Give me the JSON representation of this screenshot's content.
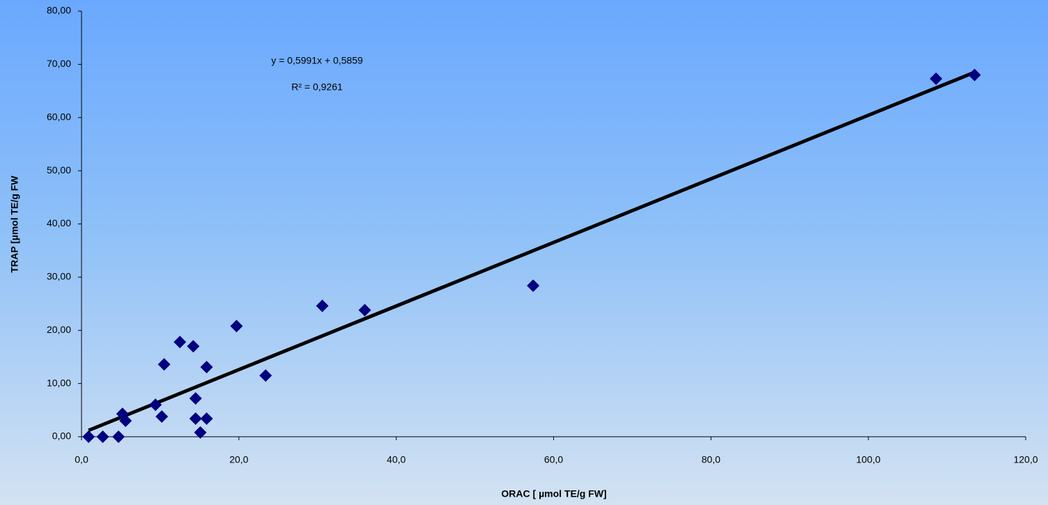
{
  "chart_data": {
    "type": "scatter",
    "x_label": "ORAC [ µmol TE/g FW]",
    "y_label": "TRAP [µmol TE/g FW",
    "x": [
      0.9,
      2.7,
      4.7,
      5.2,
      5.6,
      9.4,
      10.2,
      10.5,
      12.5,
      14.2,
      14.5,
      14.5,
      15.1,
      15.9,
      15.9,
      19.7,
      23.4,
      30.6,
      36.0,
      57.4,
      108.6,
      113.5
    ],
    "values": [
      0,
      0,
      0,
      4.3,
      3.0,
      6.0,
      3.8,
      13.6,
      17.8,
      17.0,
      7.2,
      3.4,
      0.8,
      3.4,
      13.1,
      20.8,
      11.5,
      24.6,
      23.8,
      28.4,
      67.3,
      68.0
    ],
    "color": "#000080",
    "trendline": {
      "x": [
        0.9,
        113.5
      ],
      "values": [
        1.2,
        68.5
      ],
      "color": "#000000"
    },
    "annotations": [
      "y = 0,5991x + 0,5859",
      "R² = 0,9261"
    ],
    "xlim": [
      0,
      120
    ],
    "xticks": [
      {
        "value": 0,
        "label": "0,0"
      },
      {
        "value": 20,
        "label": "20,0"
      },
      {
        "value": 40,
        "label": "40,0"
      },
      {
        "value": 60,
        "label": "60,0"
      },
      {
        "value": 80,
        "label": "80,0"
      },
      {
        "value": 100,
        "label": "100,0"
      },
      {
        "value": 120,
        "label": "120,0"
      }
    ],
    "ylim": [
      0,
      80
    ],
    "yticks": [
      {
        "value": 0,
        "label": "0,00"
      },
      {
        "value": 10,
        "label": "10,00"
      },
      {
        "value": 20,
        "label": "20,00"
      },
      {
        "value": 30,
        "label": "30,00"
      },
      {
        "value": 40,
        "label": "40,00"
      },
      {
        "value": 50,
        "label": "50,00"
      },
      {
        "value": 60,
        "label": "60,00"
      },
      {
        "value": 70,
        "label": "70,00"
      },
      {
        "value": 80,
        "label": "80,00"
      }
    ]
  }
}
